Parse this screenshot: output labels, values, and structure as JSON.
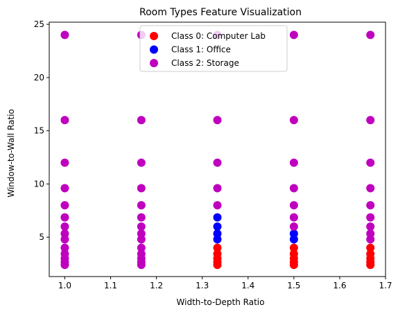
{
  "chart_data": {
    "type": "scatter",
    "title": "Room Types Feature Visualization",
    "xlabel": "Width-to-Depth Ratio",
    "ylabel": "Window-to-Wall Ratio",
    "xlim": [
      0.966,
      1.7
    ],
    "ylim": [
      1.3,
      25.2
    ],
    "xticks": [
      1.0,
      1.1,
      1.2,
      1.3,
      1.4,
      1.5,
      1.6,
      1.7
    ],
    "xtick_labels": [
      "1.0",
      "1.1",
      "1.2",
      "1.3",
      "1.4",
      "1.5",
      "1.6",
      "1.7"
    ],
    "yticks": [
      5,
      10,
      15,
      20,
      25
    ],
    "ytick_labels": [
      "5",
      "10",
      "15",
      "20",
      "25"
    ],
    "grid": false,
    "legend_position": "upper center",
    "series": [
      {
        "name": "Class 0: Computer Lab",
        "color": "#ff0000",
        "points": [
          [
            1.333,
            2.4
          ],
          [
            1.333,
            2.67
          ],
          [
            1.333,
            3.0
          ],
          [
            1.333,
            3.43
          ],
          [
            1.333,
            4.0
          ],
          [
            1.5,
            2.4
          ],
          [
            1.5,
            2.67
          ],
          [
            1.5,
            3.0
          ],
          [
            1.5,
            3.43
          ],
          [
            1.5,
            4.0
          ],
          [
            1.667,
            2.4
          ],
          [
            1.667,
            2.67
          ],
          [
            1.667,
            3.0
          ],
          [
            1.667,
            3.43
          ],
          [
            1.667,
            4.0
          ]
        ]
      },
      {
        "name": "Class 1: Office",
        "color": "#0000ff",
        "points": [
          [
            1.333,
            4.8
          ],
          [
            1.333,
            5.33
          ],
          [
            1.333,
            6.0
          ],
          [
            1.333,
            6.86
          ],
          [
            1.5,
            4.8
          ],
          [
            1.5,
            5.33
          ]
        ]
      },
      {
        "name": "Class 2: Storage",
        "color": "#bf00bf",
        "points": [
          [
            1.0,
            2.4
          ],
          [
            1.0,
            2.67
          ],
          [
            1.0,
            3.0
          ],
          [
            1.0,
            3.43
          ],
          [
            1.0,
            4.0
          ],
          [
            1.0,
            4.8
          ],
          [
            1.0,
            5.33
          ],
          [
            1.0,
            6.0
          ],
          [
            1.0,
            6.86
          ],
          [
            1.0,
            8.0
          ],
          [
            1.0,
            9.6
          ],
          [
            1.0,
            12.0
          ],
          [
            1.0,
            16.0
          ],
          [
            1.0,
            24.0
          ],
          [
            1.167,
            2.4
          ],
          [
            1.167,
            2.67
          ],
          [
            1.167,
            3.0
          ],
          [
            1.167,
            3.43
          ],
          [
            1.167,
            4.0
          ],
          [
            1.167,
            4.8
          ],
          [
            1.167,
            5.33
          ],
          [
            1.167,
            6.0
          ],
          [
            1.167,
            6.86
          ],
          [
            1.167,
            8.0
          ],
          [
            1.167,
            9.6
          ],
          [
            1.167,
            12.0
          ],
          [
            1.167,
            16.0
          ],
          [
            1.167,
            24.0
          ],
          [
            1.333,
            8.0
          ],
          [
            1.333,
            9.6
          ],
          [
            1.333,
            12.0
          ],
          [
            1.333,
            16.0
          ],
          [
            1.333,
            24.0
          ],
          [
            1.5,
            6.0
          ],
          [
            1.5,
            6.86
          ],
          [
            1.5,
            8.0
          ],
          [
            1.5,
            9.6
          ],
          [
            1.5,
            12.0
          ],
          [
            1.5,
            16.0
          ],
          [
            1.5,
            24.0
          ],
          [
            1.667,
            4.8
          ],
          [
            1.667,
            5.33
          ],
          [
            1.667,
            6.0
          ],
          [
            1.667,
            6.86
          ],
          [
            1.667,
            8.0
          ],
          [
            1.667,
            9.6
          ],
          [
            1.667,
            12.0
          ],
          [
            1.667,
            16.0
          ],
          [
            1.667,
            24.0
          ]
        ]
      }
    ]
  }
}
